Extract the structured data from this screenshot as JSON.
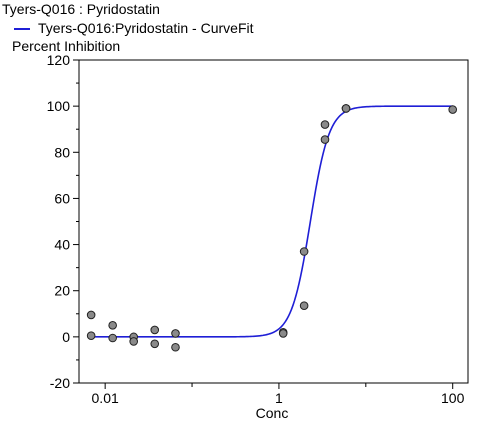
{
  "chart_data": {
    "type": "scatter",
    "title": "Tyers-Q016  : Pyridostatin",
    "legend": [
      {
        "name": "Tyers-Q016:Pyridostatin - CurveFit",
        "color": "#1f1fd6",
        "marker": "line"
      }
    ],
    "ylabel": "Percent Inhibition",
    "xlabel": "Conc",
    "x_scale": "log",
    "xlim": [
      0.005,
      150
    ],
    "ylim": [
      -20,
      120
    ],
    "x_ticks": [
      0.01,
      1,
      100
    ],
    "x_tick_labels": [
      "0.01",
      "1",
      "100"
    ],
    "y_ticks": [
      -20,
      0,
      20,
      40,
      60,
      80,
      100,
      120
    ],
    "y_tick_labels": [
      "-20",
      "0",
      "20",
      "40",
      "60",
      "80",
      "100",
      "120"
    ],
    "grid": false,
    "series": [
      {
        "name": "Tyers-Q016  : Pyridostatin",
        "kind": "points",
        "color": "#8a8a8a",
        "x": [
          0.0069,
          0.0069,
          0.0122,
          0.0122,
          0.0213,
          0.0213,
          0.0372,
          0.0372,
          0.0645,
          0.0645,
          1.12,
          1.12,
          1.95,
          1.95,
          3.39,
          3.39,
          5.92,
          5.92,
          100
        ],
        "y": [
          9.5,
          0.5,
          5,
          -0.5,
          0,
          -2,
          3,
          -3,
          1.5,
          -4.5,
          2,
          1.5,
          37,
          13.5,
          92,
          85.5,
          99,
          99,
          98.5
        ]
      },
      {
        "name": "Tyers-Q016:Pyridostatin - CurveFit",
        "kind": "curve",
        "color": "#1f1fd6",
        "model": "4PL",
        "bottom": 0,
        "top": 100,
        "ec50": 2.3,
        "hill": 4,
        "x_range": [
          0.0069,
          100
        ]
      }
    ]
  }
}
